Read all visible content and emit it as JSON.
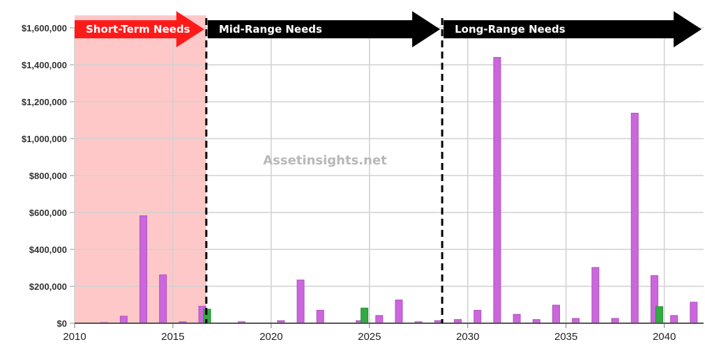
{
  "chart_data": {
    "type": "bar",
    "xlim": [
      2010,
      2042
    ],
    "ylim": [
      0,
      1600000
    ],
    "x_ticks": [
      2010,
      2015,
      2020,
      2025,
      2030,
      2035,
      2040
    ],
    "x_tick_labels": [
      "2010",
      "2015",
      "2020",
      "2025",
      "2030",
      "2035",
      "2040"
    ],
    "y_ticks": [
      0,
      200000,
      400000,
      600000,
      800000,
      1000000,
      1200000,
      1400000,
      1600000
    ],
    "y_tick_labels": [
      "$0",
      "$200,000",
      "$400,000",
      "$600,000",
      "$800,000",
      "$1,000,000",
      "$1,200,000",
      "$1,400,000",
      "$1,600,000"
    ],
    "grid": true,
    "series": [
      {
        "color": "#cc66dd",
        "points": [
          {
            "x": 2011,
            "y": 4000
          },
          {
            "x": 2012,
            "y": 38000
          },
          {
            "x": 2013,
            "y": 582000
          },
          {
            "x": 2014,
            "y": 262000
          },
          {
            "x": 2015,
            "y": 8000
          },
          {
            "x": 2016,
            "y": 92000
          },
          {
            "x": 2018,
            "y": 8000
          },
          {
            "x": 2020,
            "y": 14000
          },
          {
            "x": 2021,
            "y": 234000
          },
          {
            "x": 2022,
            "y": 70000
          },
          {
            "x": 2024,
            "y": 14000
          },
          {
            "x": 2025,
            "y": 42000
          },
          {
            "x": 2026,
            "y": 126000
          },
          {
            "x": 2027,
            "y": 8000
          },
          {
            "x": 2028,
            "y": 14000
          },
          {
            "x": 2029,
            "y": 20000
          },
          {
            "x": 2030,
            "y": 70000
          },
          {
            "x": 2031,
            "y": 1440000
          },
          {
            "x": 2032,
            "y": 48000
          },
          {
            "x": 2033,
            "y": 20000
          },
          {
            "x": 2034,
            "y": 98000
          },
          {
            "x": 2035,
            "y": 26000
          },
          {
            "x": 2036,
            "y": 302000
          },
          {
            "x": 2037,
            "y": 26000
          },
          {
            "x": 2038,
            "y": 1138000
          },
          {
            "x": 2039,
            "y": 258000
          },
          {
            "x": 2040,
            "y": 42000
          },
          {
            "x": 2041,
            "y": 114000
          }
        ]
      },
      {
        "color": "#33aa44",
        "points": [
          {
            "x": 2016,
            "y": 76000
          },
          {
            "x": 2024,
            "y": 82000
          },
          {
            "x": 2039,
            "y": 90000
          }
        ]
      }
    ],
    "phases": [
      {
        "label": "Short-Term Needs",
        "start": 2010,
        "end": 2016.7,
        "arrow_color": "#ff1a1a",
        "shade_color": "#ffc8c8"
      },
      {
        "label": "Mid-Range Needs",
        "start": 2016.7,
        "end": 2028.7,
        "arrow_color": "#000000"
      },
      {
        "label": "Long-Range Needs",
        "start": 2028.7,
        "end": 2042,
        "arrow_color": "#000000"
      }
    ],
    "watermark": "Assetinsights.net"
  }
}
